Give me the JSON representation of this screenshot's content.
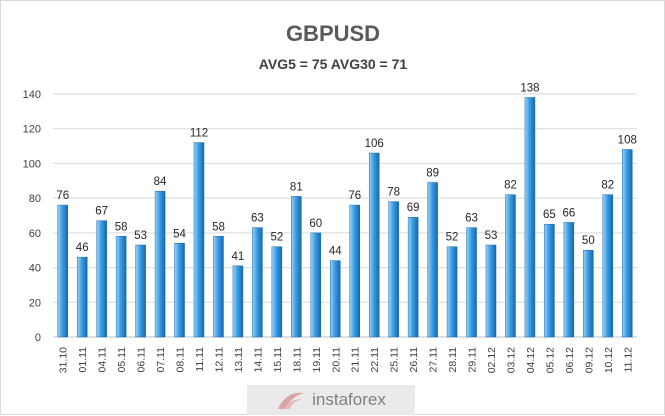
{
  "chart_data": {
    "type": "bar",
    "title": "GBPUSD",
    "subtitle": "AVG5 = 75 AVG30 = 71",
    "xlabel": "",
    "ylabel": "",
    "ylim": [
      0,
      140
    ],
    "yticks": [
      0,
      20,
      40,
      60,
      80,
      100,
      120,
      140
    ],
    "grid": true,
    "legend": "none",
    "categories": [
      "31.10",
      "01.11",
      "04.11",
      "05.11",
      "06.11",
      "07.11",
      "08.11",
      "11.11",
      "12.11",
      "13.11",
      "14.11",
      "15.11",
      "18.11",
      "19.11",
      "20.11",
      "21.11",
      "22.11",
      "25.11",
      "26.11",
      "27.11",
      "28.11",
      "29.11",
      "02.12",
      "03.12",
      "04.12",
      "05.12",
      "06.12",
      "09.12",
      "10.12",
      "11.12"
    ],
    "values": [
      76,
      46,
      67,
      58,
      53,
      84,
      54,
      112,
      58,
      41,
      63,
      52,
      81,
      60,
      44,
      76,
      106,
      78,
      69,
      89,
      52,
      63,
      53,
      82,
      138,
      65,
      66,
      50,
      82,
      108
    ],
    "colors": {
      "bar_light": "#9fd3f5",
      "bar_mid": "#3a9ee4",
      "bar_dark": "#1768b0",
      "grid": "#d9d9d9",
      "axis": "#bfbfbf"
    }
  },
  "watermark": {
    "text": "instaforex",
    "logo": "instaforex-logo-icon"
  }
}
